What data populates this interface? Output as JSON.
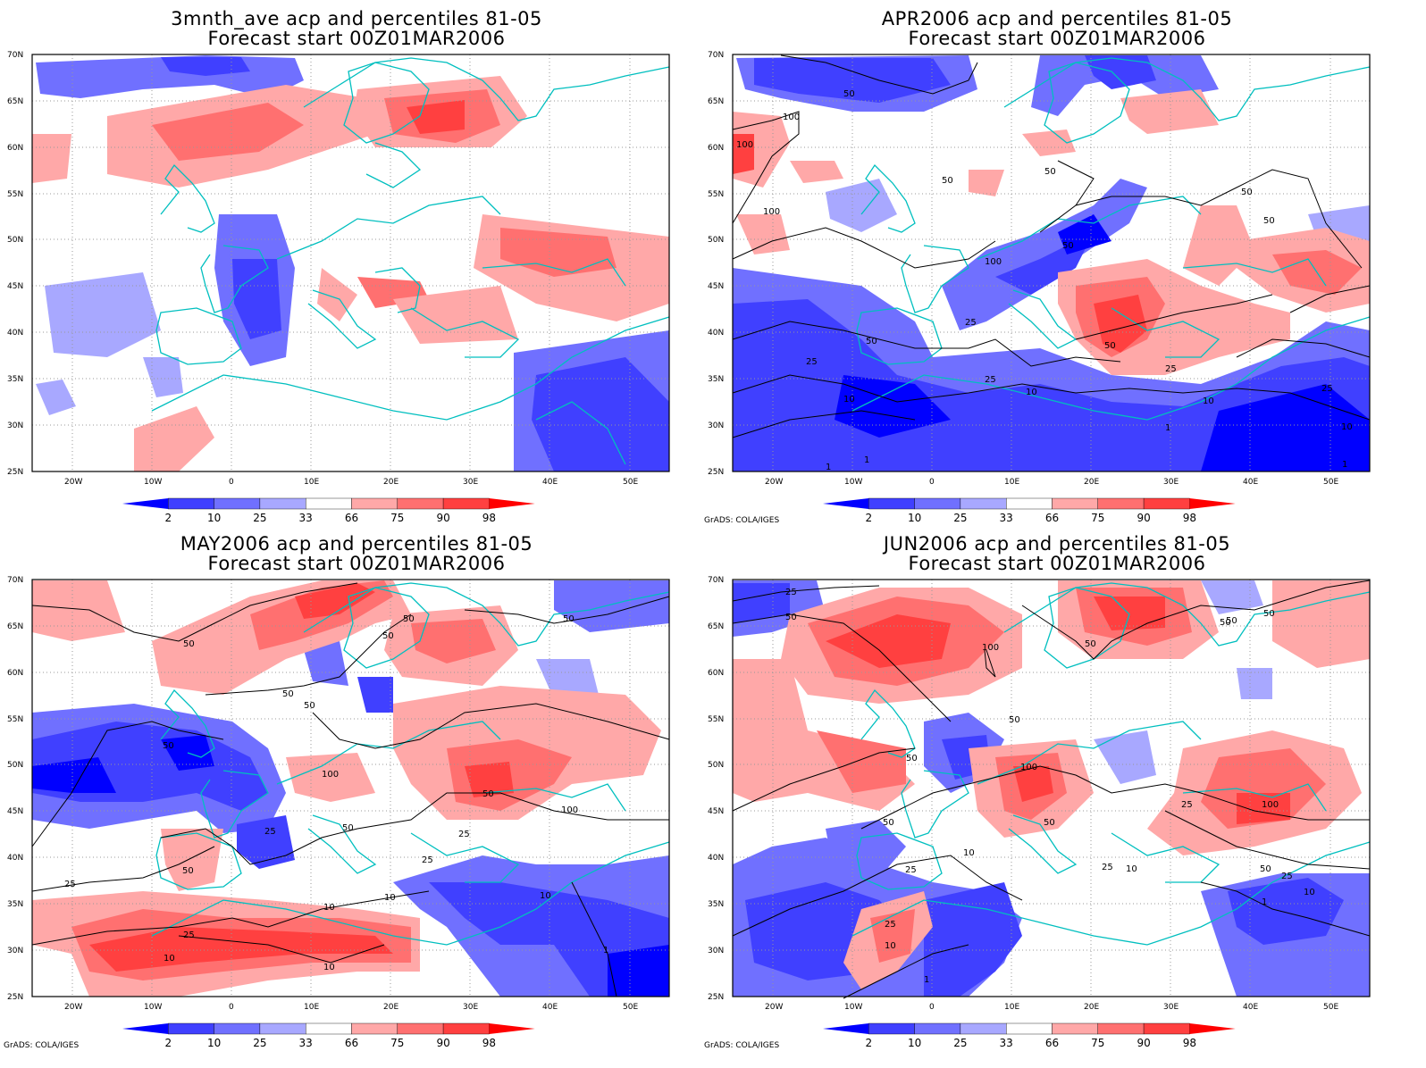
{
  "panels": [
    {
      "id": "p1",
      "title_line1": "3mnth_ave acp and percentiles 81-05",
      "title_line2": "Forecast start 00Z01MAR2006",
      "credit": "",
      "contour_labels": []
    },
    {
      "id": "p2",
      "title_line1": "APR2006 acp and percentiles 81-05",
      "title_line2": "Forecast start 00Z01MAR2006",
      "credit": "GrADS: COLA/IGES",
      "contour_labels": [
        "50",
        "100",
        "100",
        "100",
        "50",
        "50",
        "50",
        "50",
        "100",
        "50",
        "25",
        "25",
        "50",
        "25",
        "10",
        "10",
        "50",
        "25",
        "10",
        "1",
        "10",
        "1",
        "1",
        "1",
        "25"
      ]
    },
    {
      "id": "p3",
      "title_line1": "MAY2006 acp and percentiles 81-05",
      "title_line2": "Forecast start 00Z01MAR2006",
      "credit": "GrADS: COLA/IGES",
      "contour_labels": [
        "50",
        "50",
        "50",
        "50",
        "50",
        "50",
        "50",
        "100",
        "25",
        "50",
        "50",
        "25",
        "25",
        "100",
        "50",
        "10",
        "10",
        "25",
        "10",
        "10",
        "25",
        "10",
        "1"
      ]
    },
    {
      "id": "p4",
      "title_line1": "JUN2006 acp and percentiles 81-05",
      "title_line2": "Forecast start 00Z01MAR2006",
      "credit": "GrADS: COLA/IGES",
      "contour_labels": [
        "25",
        "50",
        "50",
        "100",
        "50",
        "50",
        "50",
        "50",
        "100",
        "50",
        "50",
        "25",
        "100",
        "25",
        "10",
        "25",
        "10",
        "50",
        "25",
        "1",
        "10",
        "25",
        "10",
        "1",
        "50"
      ]
    }
  ],
  "axes": {
    "lat_labels": [
      "70N",
      "65N",
      "60N",
      "55N",
      "50N",
      "45N",
      "40N",
      "35N",
      "30N",
      "25N"
    ],
    "lon_labels": [
      "20W",
      "10W",
      "0",
      "10E",
      "20E",
      "30E",
      "40E",
      "50E"
    ]
  },
  "colorbar": {
    "labels": [
      "2",
      "10",
      "25",
      "33",
      "66",
      "75",
      "90",
      "98"
    ],
    "colors": [
      "#0000ff",
      "#4040ff",
      "#7070ff",
      "#a8a8ff",
      "#ffffff",
      "#ffa8a8",
      "#ff7070",
      "#ff4040",
      "#ff0000"
    ]
  },
  "coast_color": "#00bfbf"
}
